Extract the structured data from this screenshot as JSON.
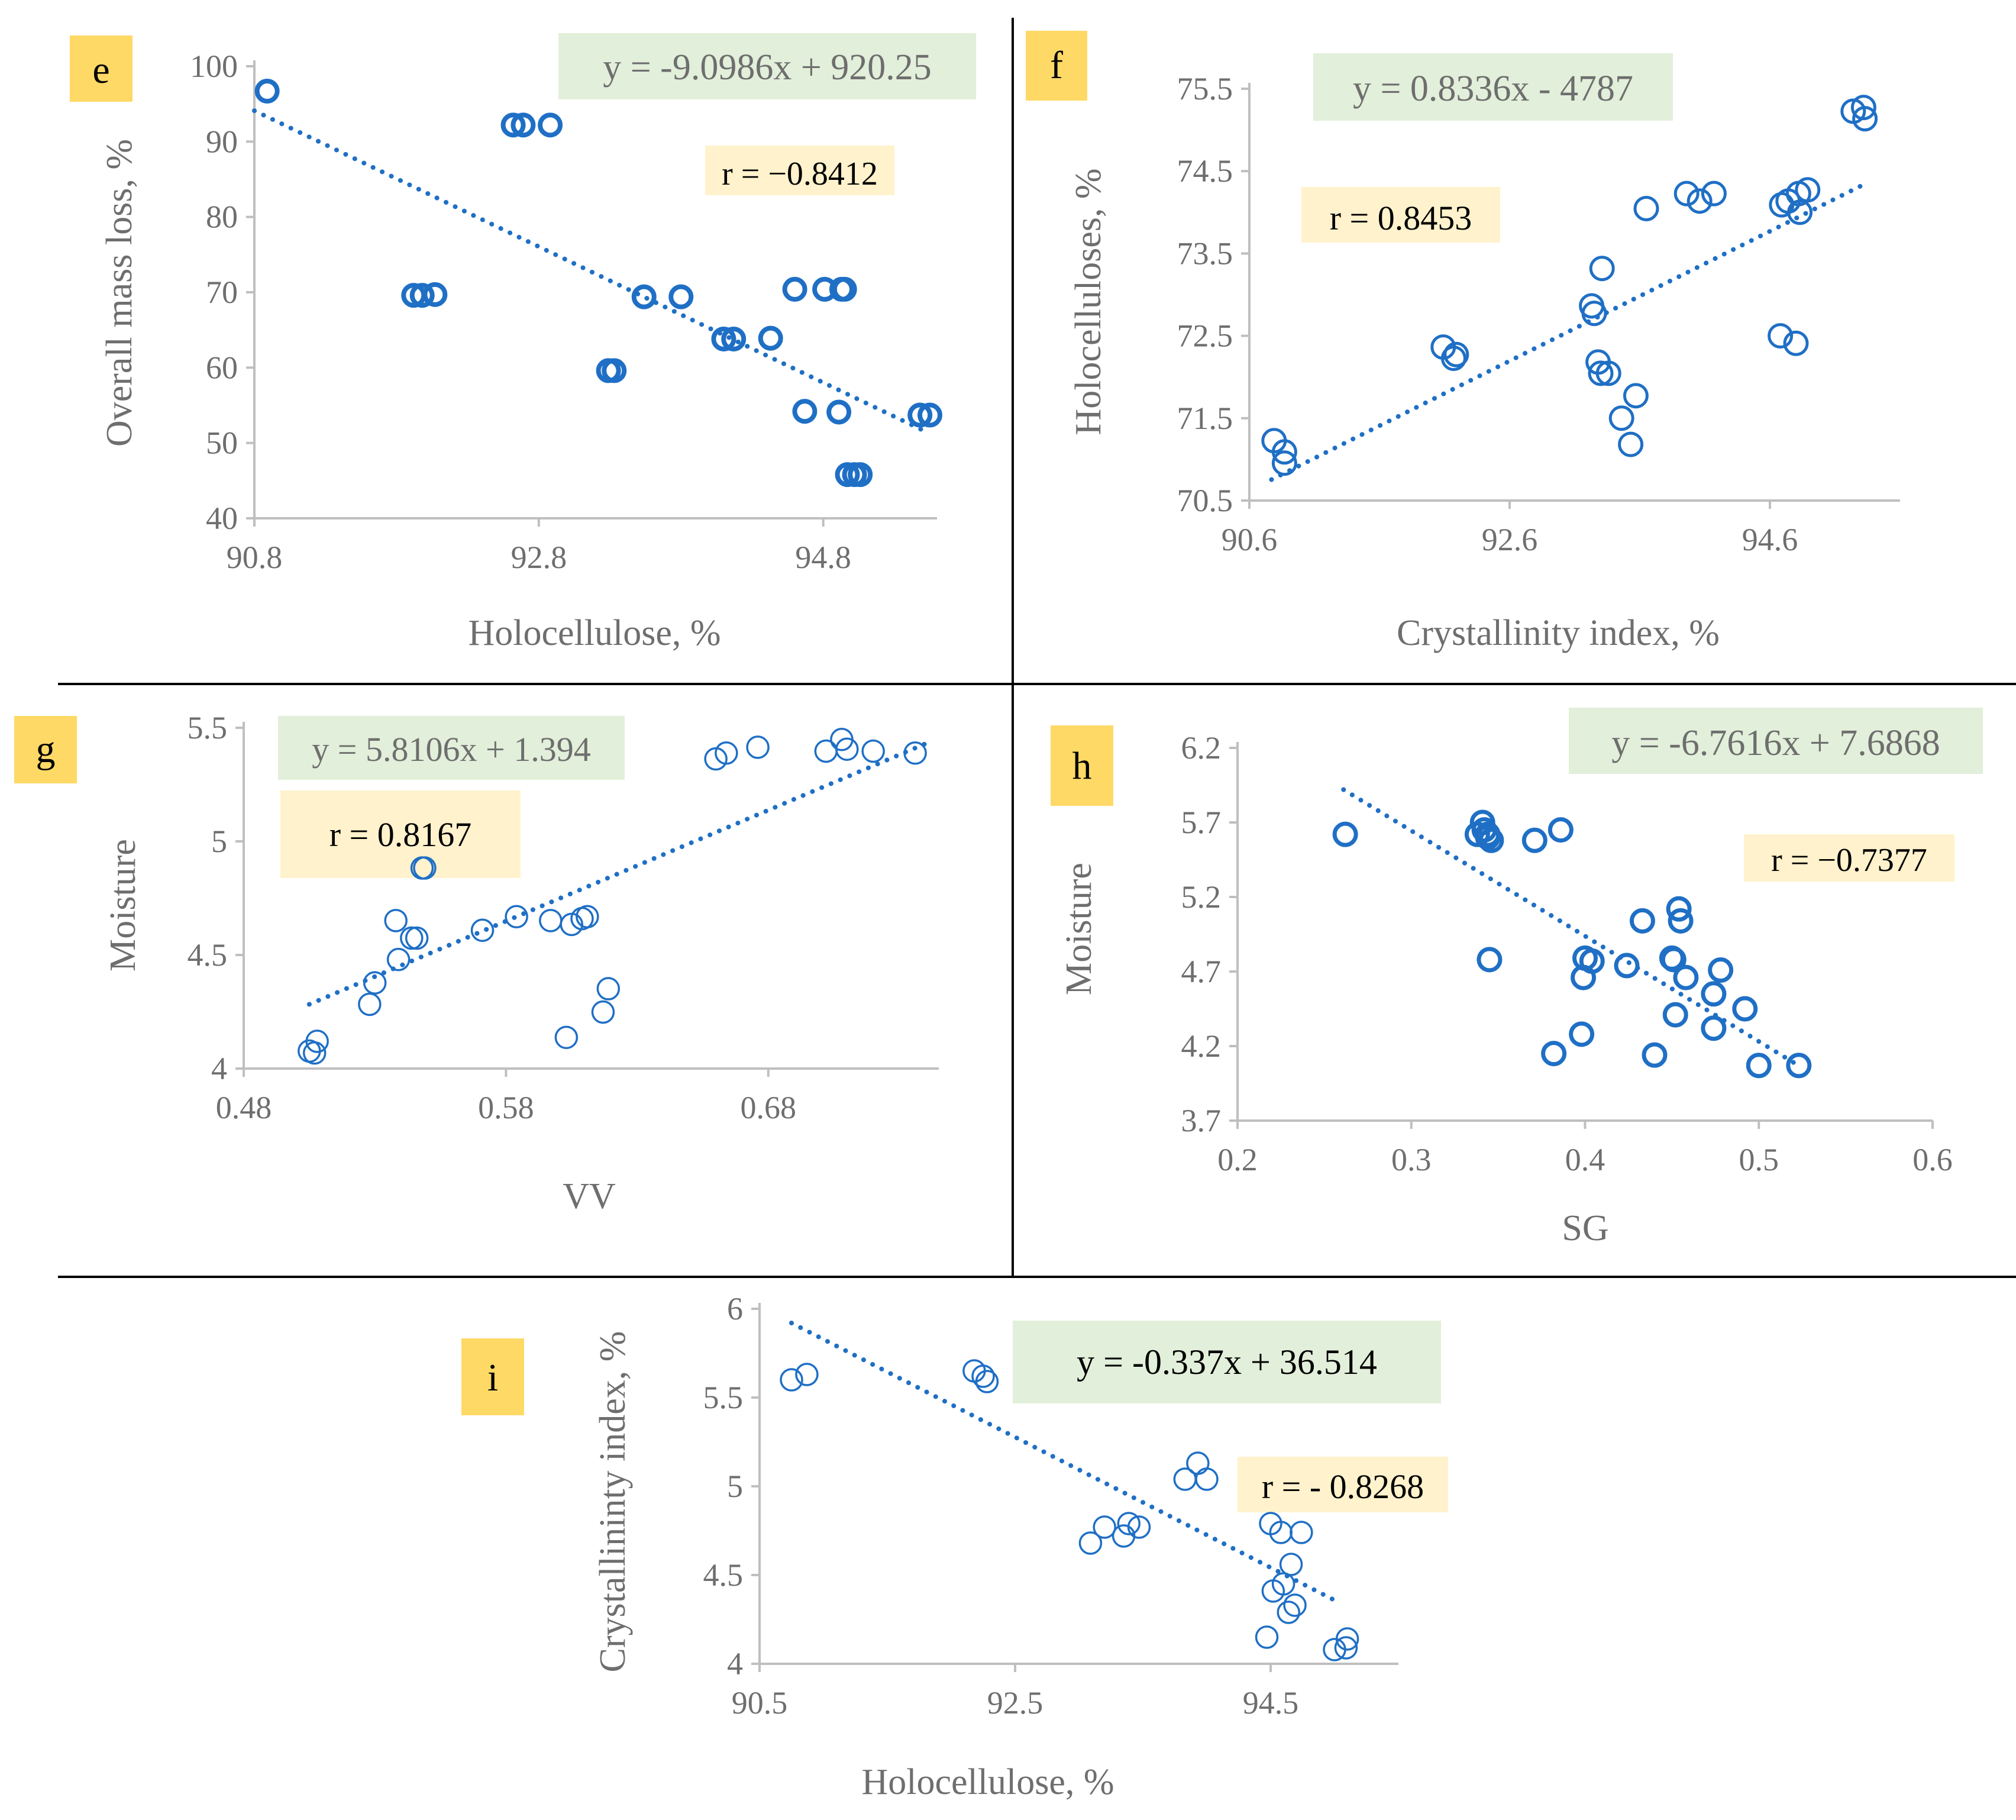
{
  "colors": {
    "marker": "#1f6fc5",
    "trend": "#1f6fc5",
    "axis": "#bfbfbf",
    "tick_text": "#6e6e6e",
    "title_text": "#6e6e6e",
    "divider": "#000000",
    "panel_badge": "#ffd966",
    "equation_box": "#e2efda",
    "r_box": "#fff2cc",
    "equation_text_dim": "#6e6e6e",
    "equation_text_dark": "#000000"
  },
  "chart_data": [
    {
      "type": "scatter",
      "panel_label": "e",
      "xlabel": "Holocellulose, %",
      "ylabel": "Overall mass loss, %",
      "xlim": [
        90.8,
        95.6
      ],
      "ylim": [
        40,
        100
      ],
      "xticks": [
        "90.8",
        "92.8",
        "94.8"
      ],
      "yticks": [
        "40",
        "50",
        "60",
        "70",
        "80",
        "90",
        "100"
      ],
      "equation": "y = -9.0986x + 920.25",
      "r_text": "r = −0.8412",
      "trendline": {
        "x": [
          90.8,
          95.5
        ],
        "y": [
          94.1,
          51.7
        ]
      },
      "x": [
        90.89,
        92.62,
        92.69,
        92.88,
        91.92,
        91.98,
        92.07,
        93.54,
        93.8,
        93.29,
        93.33,
        94.1,
        94.17,
        94.43,
        94.67,
        94.6,
        94.81,
        94.93,
        94.91,
        94.95,
        94.97,
        95.02,
        95.06,
        95.48,
        95.55
      ],
      "y": [
        96.7,
        92.2,
        92.2,
        92.2,
        69.6,
        69.6,
        69.7,
        69.4,
        69.4,
        59.6,
        59.6,
        63.8,
        63.8,
        63.9,
        54.2,
        70.4,
        70.4,
        70.4,
        54.1,
        70.4,
        45.8,
        45.8,
        45.8,
        53.7,
        53.7
      ],
      "marker_style": "bold"
    },
    {
      "type": "scatter",
      "panel_label": "f",
      "xlabel": "Crystallinity index, %",
      "ylabel": "Holocelluloses, %",
      "xlim": [
        90.6,
        95.6
      ],
      "ylim": [
        70.5,
        76
      ],
      "xticks": [
        "90.6",
        "92.6",
        "94.6"
      ],
      "yticks": [
        "70.5",
        "71.5",
        "72.5",
        "73.5",
        "74.5",
        "75.5"
      ],
      "equation": "y = 0.8336x - 4787",
      "r_text": "r = 0.8453",
      "trendline": {
        "x": [
          90.77,
          95.32
        ],
        "y": [
          70.78,
          74.72
        ]
      },
      "x": [
        90.79,
        90.87,
        90.87,
        92.09,
        92.17,
        92.19,
        93.23,
        93.25,
        93.28,
        93.3,
        93.31,
        93.36,
        93.46,
        93.53,
        93.57,
        93.65,
        93.96,
        94.06,
        94.17,
        94.68,
        94.69,
        94.74,
        94.8,
        94.82,
        94.83,
        94.89,
        95.24,
        95.32,
        95.33
      ],
      "y": [
        71.3,
        71.15,
        71.0,
        72.55,
        72.4,
        72.45,
        73.1,
        73.0,
        72.35,
        72.2,
        73.6,
        72.2,
        71.6,
        71.25,
        71.9,
        74.4,
        74.6,
        74.5,
        74.6,
        72.7,
        74.45,
        74.5,
        72.6,
        74.6,
        74.35,
        74.65,
        75.7,
        75.75,
        75.6
      ],
      "marker_style": "normal"
    },
    {
      "type": "scatter",
      "panel_label": "g",
      "xlabel": "VV",
      "ylabel": "Moisture",
      "xlim": [
        0.48,
        0.745
      ],
      "ylim": [
        4,
        5.75
      ],
      "xticks": [
        "0.48",
        "0.58",
        "0.68"
      ],
      "yticks": [
        "4",
        "4.5",
        "5",
        "5.5"
      ],
      "equation": "y = 5.8106x + 1.394",
      "r_text": "r = 0.8167",
      "trendline": {
        "x": [
          0.505,
          0.742
        ],
        "y": [
          4.33,
          5.68
        ]
      },
      "x": [
        0.505,
        0.507,
        0.508,
        0.528,
        0.53,
        0.538,
        0.539,
        0.544,
        0.546,
        0.548,
        0.549,
        0.571,
        0.584,
        0.597,
        0.603,
        0.605,
        0.609,
        0.611,
        0.617,
        0.619,
        0.66,
        0.664,
        0.676,
        0.702,
        0.708,
        0.71,
        0.72,
        0.736
      ],
      "y": [
        4.09,
        4.08,
        4.14,
        4.33,
        4.44,
        4.76,
        4.56,
        4.67,
        4.67,
        5.03,
        5.03,
        4.71,
        4.78,
        4.76,
        4.16,
        4.74,
        4.77,
        4.78,
        4.29,
        4.41,
        5.59,
        5.62,
        5.65,
        5.63,
        5.69,
        5.64,
        5.63,
        5.62
      ],
      "marker_style": "thin"
    },
    {
      "type": "scatter",
      "panel_label": "h",
      "xlabel": "SG",
      "ylabel": "Moisture",
      "xlim": [
        0.2,
        0.6
      ],
      "ylim": [
        3.7,
        6.2
      ],
      "xticks": [
        "0.2",
        "0.3",
        "0.4",
        "0.5",
        "0.6"
      ],
      "yticks": [
        "3.7",
        "4.2",
        "4.7",
        "5.2",
        "5.7",
        "6.2"
      ],
      "equation": "y = -6.7616x + 7.6868",
      "r_text": "r = −0.7377",
      "trendline": {
        "x": [
          0.261,
          0.52
        ],
        "y": [
          5.92,
          4.09
        ]
      },
      "x": [
        0.262,
        0.338,
        0.341,
        0.342,
        0.344,
        0.344,
        0.345,
        0.346,
        0.371,
        0.382,
        0.386,
        0.398,
        0.399,
        0.4,
        0.404,
        0.424,
        0.433,
        0.44,
        0.45,
        0.451,
        0.452,
        0.454,
        0.455,
        0.458,
        0.474,
        0.474,
        0.478,
        0.492,
        0.5,
        0.523
      ],
      "y": [
        5.62,
        5.62,
        5.7,
        5.65,
        5.6,
        5.62,
        4.78,
        5.58,
        5.58,
        4.15,
        5.65,
        4.28,
        4.66,
        4.79,
        4.77,
        4.74,
        5.04,
        4.14,
        4.79,
        4.78,
        4.41,
        5.12,
        5.04,
        4.66,
        4.55,
        4.32,
        4.71,
        4.45,
        4.07,
        4.07
      ],
      "marker_style": "bold"
    },
    {
      "type": "scatter",
      "panel_label": "i",
      "xlabel": "Holocellulose, %",
      "ylabel": "Crystallininty index, %",
      "xlim": [
        90.5,
        95.5
      ],
      "ylim": [
        4,
        6
      ],
      "xticks": [
        "90.5",
        "92.5",
        "94.5"
      ],
      "yticks": [
        "4",
        "4.5",
        "5",
        "5.5",
        "6"
      ],
      "equation": "y = -0.337x + 36.514",
      "r_text": "r = - 0.8268",
      "trendline": {
        "x": [
          90.75,
          95.05
        ],
        "y": [
          5.92,
          4.34
        ]
      },
      "x": [
        90.75,
        90.87,
        92.18,
        92.25,
        92.28,
        93.09,
        93.2,
        93.35,
        93.39,
        93.47,
        93.83,
        93.93,
        94.0,
        94.47,
        94.5,
        94.52,
        94.58,
        94.6,
        94.64,
        94.66,
        94.69,
        94.74,
        95.0,
        95.09,
        95.1
      ],
      "y": [
        5.6,
        5.63,
        5.65,
        5.62,
        5.59,
        4.68,
        4.77,
        4.72,
        4.79,
        4.77,
        5.04,
        5.13,
        5.04,
        4.15,
        4.79,
        4.41,
        4.74,
        4.45,
        4.29,
        4.56,
        4.33,
        4.74,
        4.08,
        4.09,
        4.14
      ],
      "marker_style": "thin"
    }
  ]
}
